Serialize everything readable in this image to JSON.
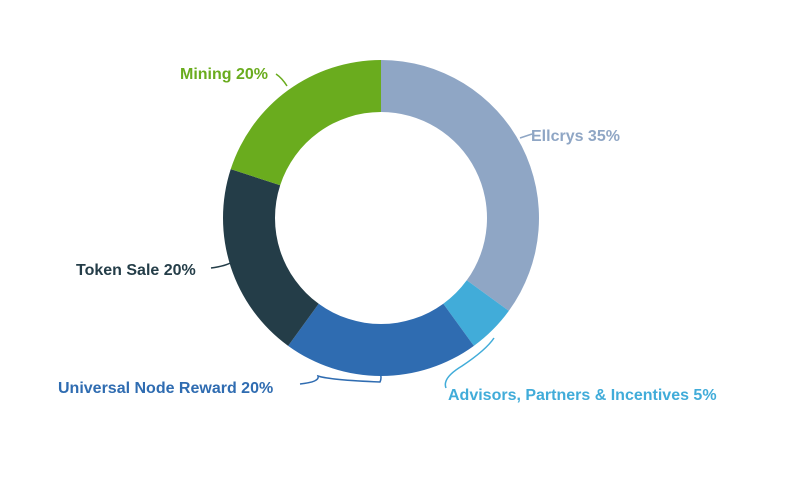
{
  "chart_data": {
    "type": "pie",
    "title": "",
    "categories": [
      "Ellcrys",
      "Advisors, Partners & Incentives",
      "Universal Node Reward",
      "Token Sale",
      "Mining"
    ],
    "values": [
      35,
      5,
      20,
      20,
      20
    ],
    "unit": "%",
    "labels": [
      "Ellcrys 35%",
      "Advisors, Partners & Incentives 5%",
      "Universal Node Reward 20%",
      "Token Sale 20%",
      "Mining 20%"
    ],
    "colors": [
      "#8fa6c5",
      "#41acd9",
      "#2f6cb1",
      "#243d48",
      "#6aac1e"
    ],
    "label_colors": [
      "#8fa6c5",
      "#41acd9",
      "#2f6cb1",
      "#243d48",
      "#6aac1e"
    ],
    "legend": "none",
    "donut": true
  }
}
